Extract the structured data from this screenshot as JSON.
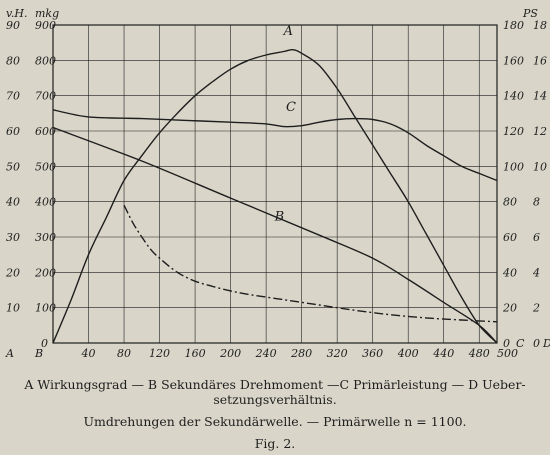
{
  "chart_data": {
    "type": "line",
    "x": {
      "ticks": [
        40,
        80,
        120,
        160,
        200,
        240,
        280,
        320,
        360,
        400,
        440,
        480,
        500
      ],
      "range": [
        0,
        500
      ],
      "corner_labels": [
        "A",
        "B",
        "C",
        "D"
      ],
      "end_numbers": [
        "0",
        "0"
      ]
    },
    "axes": [
      {
        "unit": "v.H.",
        "side": "left-outer",
        "range": [
          0,
          90
        ],
        "ticks": [
          10,
          20,
          30,
          40,
          50,
          60,
          70,
          80,
          90
        ]
      },
      {
        "unit": "mkg",
        "side": "left-inner",
        "range": [
          0,
          900
        ],
        "ticks": [
          100,
          200,
          300,
          400,
          500,
          600,
          700,
          800,
          900
        ]
      },
      {
        "unit": "PS",
        "side": "right-inner",
        "range": [
          0,
          180
        ],
        "ticks": [
          20,
          40,
          60,
          80,
          100,
          120,
          140,
          160,
          180
        ]
      },
      {
        "unit": "",
        "side": "right-outer",
        "range": [
          0,
          18
        ],
        "ticks": [
          2,
          4,
          6,
          8,
          10,
          12,
          14,
          16,
          18
        ]
      }
    ],
    "series": [
      {
        "name": "A",
        "axis": 0,
        "label_at": [
          265,
          86
        ],
        "points": [
          [
            0,
            0
          ],
          [
            20,
            12
          ],
          [
            40,
            25
          ],
          [
            60,
            35.5
          ],
          [
            80,
            46
          ],
          [
            100,
            53
          ],
          [
            120,
            59.5
          ],
          [
            140,
            65
          ],
          [
            160,
            70
          ],
          [
            180,
            74
          ],
          [
            200,
            77.5
          ],
          [
            220,
            80
          ],
          [
            240,
            81.5
          ],
          [
            260,
            82.5
          ],
          [
            270,
            83
          ],
          [
            280,
            82
          ],
          [
            300,
            78.5
          ],
          [
            320,
            72
          ],
          [
            340,
            64
          ],
          [
            360,
            56
          ],
          [
            380,
            48
          ],
          [
            400,
            40
          ],
          [
            420,
            31
          ],
          [
            440,
            22
          ],
          [
            460,
            13
          ],
          [
            480,
            5
          ],
          [
            500,
            0
          ]
        ]
      },
      {
        "name": "B",
        "axis": 1,
        "label_at": [
          255,
          335
        ],
        "points": [
          [
            0,
            610
          ],
          [
            100,
            515
          ],
          [
            200,
            410
          ],
          [
            300,
            305
          ],
          [
            360,
            240
          ],
          [
            400,
            180
          ],
          [
            440,
            115
          ],
          [
            480,
            50
          ],
          [
            500,
            0
          ]
        ]
      },
      {
        "name": "C",
        "axis": 2,
        "label_at": [
          268,
          129
        ],
        "points": [
          [
            0,
            132
          ],
          [
            40,
            128
          ],
          [
            100,
            127
          ],
          [
            150,
            126
          ],
          [
            200,
            125
          ],
          [
            240,
            124
          ],
          [
            260,
            122.5
          ],
          [
            280,
            123
          ],
          [
            300,
            125
          ],
          [
            320,
            126.5
          ],
          [
            340,
            127
          ],
          [
            360,
            126.5
          ],
          [
            380,
            124
          ],
          [
            400,
            119
          ],
          [
            420,
            112
          ],
          [
            440,
            106
          ],
          [
            460,
            100
          ],
          [
            480,
            96
          ],
          [
            500,
            92
          ]
        ]
      },
      {
        "name": "D",
        "axis": 3,
        "label_at": [
          225,
          61
        ],
        "points": [
          [
            80,
            7.8
          ],
          [
            90,
            6.8
          ],
          [
            100,
            6.0
          ],
          [
            110,
            5.3
          ],
          [
            120,
            4.8
          ],
          [
            140,
            4.0
          ],
          [
            160,
            3.5
          ],
          [
            180,
            3.2
          ],
          [
            200,
            2.95
          ],
          [
            220,
            2.75
          ],
          [
            260,
            2.45
          ],
          [
            300,
            2.15
          ],
          [
            340,
            1.85
          ],
          [
            380,
            1.6
          ],
          [
            420,
            1.42
          ],
          [
            460,
            1.3
          ],
          [
            500,
            1.2
          ]
        ]
      }
    ]
  },
  "caption": {
    "legend_line1": "A Wirkungsgrad — B Sekundäres Drehmoment —C Primärleistung — D Ueber-",
    "legend_line2": "setzungsverhältnis.",
    "xlabel": "Umdrehungen der Sekundärwelle. — Primärwelle n = 1100.",
    "figure": "Fig. 2."
  }
}
